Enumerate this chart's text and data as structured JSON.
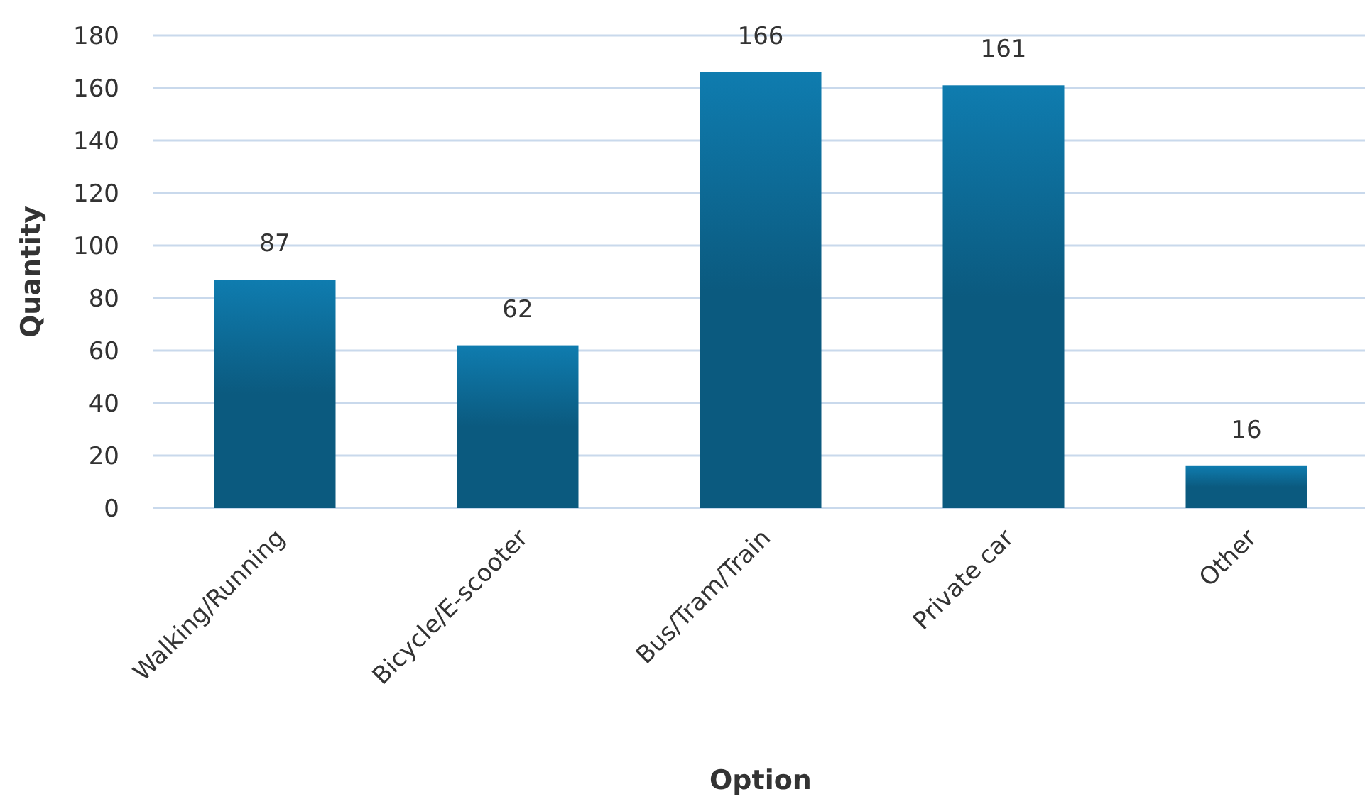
{
  "chart_data": {
    "type": "bar",
    "xlabel": "Option",
    "ylabel": "Quantity",
    "categories": [
      "Walking/Running",
      "Bicycle/E-scooter",
      "Bus/Tram/Train",
      "Private car",
      "Other"
    ],
    "values": [
      87,
      62,
      166,
      161,
      16
    ],
    "color": "#0b5a7f",
    "ylim": [
      0,
      180
    ],
    "yticks": [
      0,
      20,
      40,
      60,
      80,
      100,
      120,
      140,
      160,
      180
    ],
    "grid": "y",
    "data_labels": true
  }
}
